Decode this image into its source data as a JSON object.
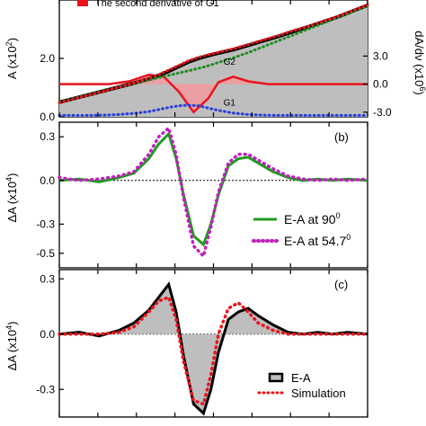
{
  "chart_data": [
    {
      "type": "area",
      "panel_label": "",
      "legend": [
        {
          "label": "The second derivative of G1",
          "color": "#e8141c"
        }
      ],
      "ylabel_left": {
        "main": "A (x10",
        "sup": "2",
        "tail": ")"
      },
      "ylabel_right": {
        "main": "dA/dν (x10",
        "sup": "6",
        "tail": ")"
      },
      "ylim_left": [
        0,
        4.0
      ],
      "yticks_left": [
        {
          "v": 0.0,
          "label": "0.0"
        },
        {
          "v": 2.0,
          "label": "2.0"
        }
      ],
      "ylim_right": [
        -3.5,
        9.0
      ],
      "yticks_right": [
        {
          "v": -3.0,
          "label": "-3.0"
        },
        {
          "v": 0.0,
          "label": "0.0"
        },
        {
          "v": 3.0,
          "label": "3.0"
        }
      ],
      "annotations": [
        {
          "text": "G2",
          "x": 3.3,
          "y": 1.78
        },
        {
          "text": "G1",
          "x": 3.3,
          "y": 0.38
        }
      ],
      "x": [
        0.0,
        0.3,
        0.6,
        0.9,
        1.2,
        1.5,
        1.8,
        2.0,
        2.2,
        2.4,
        2.6,
        2.8,
        3.0,
        3.2,
        3.5,
        3.8,
        4.1,
        4.4,
        4.7,
        5.0,
        5.3,
        5.6,
        5.9,
        6.2
      ],
      "series": [
        {
          "key": "total",
          "values": [
            0.5,
            0.63,
            0.76,
            0.89,
            1.02,
            1.15,
            1.3,
            1.42,
            1.56,
            1.72,
            1.88,
            2.0,
            2.1,
            2.18,
            2.3,
            2.45,
            2.6,
            2.75,
            2.92,
            3.08,
            3.25,
            3.42,
            3.62,
            3.82
          ],
          "color": "#000000"
        },
        {
          "key": "G2",
          "values": [
            0.5,
            0.63,
            0.76,
            0.89,
            1.02,
            1.14,
            1.26,
            1.34,
            1.42,
            1.5,
            1.58,
            1.66,
            1.75,
            1.86,
            2.02,
            2.2,
            2.4,
            2.6,
            2.8,
            3.0,
            3.2,
            3.4,
            3.6,
            3.8
          ],
          "color": "#228B22"
        },
        {
          "key": "G1",
          "values": [
            0.05,
            0.05,
            0.05,
            0.06,
            0.08,
            0.12,
            0.18,
            0.25,
            0.32,
            0.38,
            0.4,
            0.38,
            0.3,
            0.22,
            0.13,
            0.08,
            0.06,
            0.05,
            0.05,
            0.05,
            0.05,
            0.05,
            0.05,
            0.05
          ],
          "color": "#2a3fd8"
        },
        {
          "key": "fit",
          "values": [
            0.48,
            0.62,
            0.75,
            0.88,
            1.02,
            1.16,
            1.32,
            1.45,
            1.6,
            1.76,
            1.92,
            2.04,
            2.13,
            2.21,
            2.33,
            2.48,
            2.63,
            2.78,
            2.95,
            3.1,
            3.27,
            3.44,
            3.64,
            3.84
          ],
          "color": "#e8141c"
        }
      ],
      "derivative": {
        "x": [
          0.0,
          1.0,
          1.4,
          1.8,
          2.1,
          2.4,
          2.7,
          3.0,
          3.2,
          3.5,
          3.8,
          4.2,
          6.2
        ],
        "values": [
          0.0,
          0.0,
          0.3,
          1.0,
          0.8,
          -0.8,
          -3.0,
          -1.5,
          0.2,
          0.8,
          0.3,
          0.0,
          0.0
        ],
        "color": "#e8141c"
      }
    },
    {
      "type": "line",
      "panel_label": "(b)",
      "ylabel": {
        "main": "ΔA (x10",
        "sup": "4",
        "tail": ")"
      },
      "ylim": [
        -0.6,
        0.4
      ],
      "yticks": [
        {
          "v": 0.3,
          "label": "0.3"
        },
        {
          "v": 0.0,
          "label": "0.0"
        },
        {
          "v": -0.3,
          "label": "-0.3"
        },
        {
          "v": -0.5,
          "label": "-0.5"
        }
      ],
      "x": [
        0.0,
        0.4,
        0.8,
        1.2,
        1.5,
        1.8,
        2.0,
        2.2,
        2.35,
        2.5,
        2.7,
        2.9,
        3.05,
        3.2,
        3.4,
        3.6,
        3.8,
        4.0,
        4.3,
        4.6,
        4.9,
        5.2,
        5.5,
        5.8,
        6.2
      ],
      "series": [
        {
          "name": "E-A at 90",
          "label_main": "E-A at 90",
          "label_sup": "0",
          "style": "solid",
          "color": "#1f9a1f",
          "values": [
            0.0,
            0.01,
            -0.01,
            0.02,
            0.05,
            0.15,
            0.25,
            0.32,
            0.15,
            -0.1,
            -0.38,
            -0.44,
            -0.3,
            -0.1,
            0.1,
            0.15,
            0.16,
            0.12,
            0.06,
            0.02,
            0.0,
            0.01,
            0.0,
            0.01,
            0.0
          ]
        },
        {
          "name": "E-A at 54.7",
          "label_main": "E-A at 54.7",
          "label_sup": "0",
          "style": "dotted",
          "color": "#c020c0",
          "values": [
            0.02,
            0.0,
            0.01,
            0.03,
            0.06,
            0.18,
            0.3,
            0.36,
            0.18,
            -0.12,
            -0.45,
            -0.52,
            -0.32,
            -0.08,
            0.12,
            0.18,
            0.18,
            0.14,
            0.08,
            0.03,
            0.01,
            0.0,
            0.01,
            0.0,
            0.01
          ]
        }
      ]
    },
    {
      "type": "line",
      "panel_label": "(c)",
      "ylabel": {
        "main": "ΔA (x10",
        "sup": "4",
        "tail": ")"
      },
      "ylim": [
        -0.45,
        0.35
      ],
      "yticks": [
        {
          "v": 0.3,
          "label": "0.3"
        },
        {
          "v": 0.0,
          "label": "0.0"
        },
        {
          "v": -0.3,
          "label": "-0.3"
        }
      ],
      "x": [
        0.0,
        0.4,
        0.8,
        1.2,
        1.5,
        1.8,
        2.0,
        2.2,
        2.35,
        2.5,
        2.7,
        2.9,
        3.05,
        3.2,
        3.4,
        3.6,
        3.8,
        4.0,
        4.3,
        4.6,
        4.9,
        5.2,
        5.5,
        5.8,
        6.2
      ],
      "series": [
        {
          "name": "E-A",
          "label_main": "E-A",
          "label_sup": "",
          "style": "solid",
          "color": "#000000",
          "fill": "#bebebe",
          "values": [
            0.0,
            0.01,
            -0.01,
            0.02,
            0.06,
            0.13,
            0.2,
            0.27,
            0.12,
            -0.12,
            -0.38,
            -0.43,
            -0.3,
            -0.1,
            0.08,
            0.12,
            0.14,
            0.1,
            0.05,
            0.01,
            0.0,
            0.01,
            0.0,
            0.01,
            0.0
          ]
        },
        {
          "name": "Simulation",
          "label_main": "Simulation",
          "label_sup": "",
          "style": "dotted",
          "color": "#e8141c",
          "values": [
            0.0,
            0.0,
            0.0,
            0.01,
            0.04,
            0.12,
            0.18,
            0.2,
            0.08,
            -0.15,
            -0.36,
            -0.38,
            -0.22,
            0.0,
            0.14,
            0.17,
            0.12,
            0.06,
            0.02,
            0.0,
            0.0,
            0.0,
            0.0,
            0.0,
            0.0
          ]
        }
      ]
    }
  ]
}
